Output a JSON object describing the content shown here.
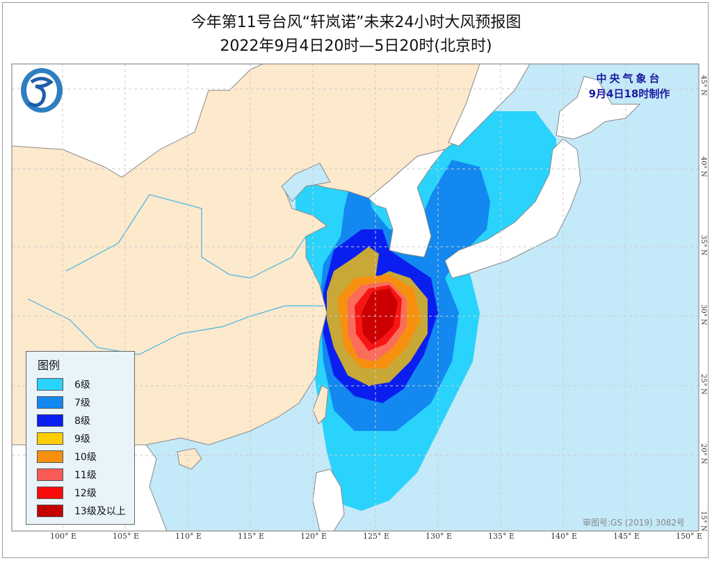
{
  "header": {
    "title": "今年第11号台风“轩岚诺”未来24小时大风预报图",
    "subtitle": "2022年9月4日20时—5日20时(北京时)"
  },
  "agency": {
    "name": "中央气象台",
    "issued": "9月4日18时制作"
  },
  "approval": "审图号:GS (2019) 3082号",
  "legend": {
    "title": "图例",
    "items": [
      {
        "label": "6级",
        "color": "#29d3fb"
      },
      {
        "label": "7级",
        "color": "#1288f0"
      },
      {
        "label": "8级",
        "color": "#0a1ef0"
      },
      {
        "label": "9级",
        "color": "#ffcc00"
      },
      {
        "label": "10级",
        "color": "#f7900f"
      },
      {
        "label": "11级",
        "color": "#fa5a55"
      },
      {
        "label": "12级",
        "color": "#fa0a0a"
      },
      {
        "label": "13级及以上",
        "color": "#c40000"
      }
    ]
  },
  "axes": {
    "longitudes": [
      "100° E",
      "105° E",
      "110° E",
      "115° E",
      "120° E",
      "125° E",
      "130° E",
      "135° E",
      "140° E",
      "145° E",
      "150° E"
    ],
    "latitudes": [
      "45° N",
      "40° N",
      "35° N",
      "30° N",
      "25° N",
      "20° N",
      "15° N"
    ]
  },
  "colors": {
    "sea": "#c4e9f8",
    "china_land": "#fde9cc",
    "other_land": "#ffffff",
    "nine_level_on_map": "#c8a836"
  }
}
